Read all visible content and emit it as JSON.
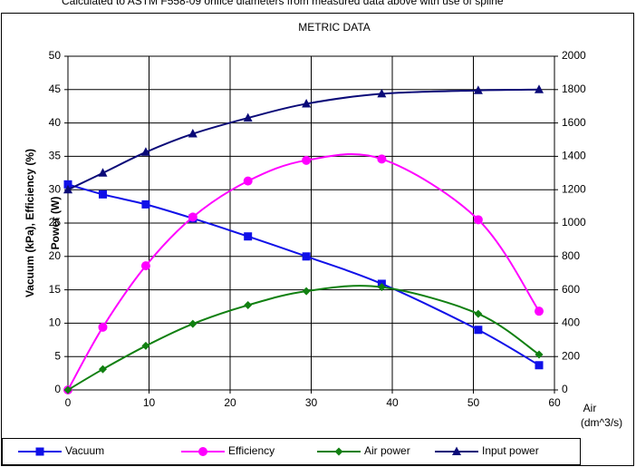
{
  "chart_data": {
    "type": "line",
    "note": "Calculated to ASTM F558-09 orifice diameters from measured data above with use of spline",
    "title": "METRIC DATA",
    "y_label": "Vacuum (kPa), Efficiency (%)",
    "y2_label": "Power (W)",
    "x_label": [
      "Air",
      "(dm^3/s)"
    ],
    "xlim": [
      0,
      60
    ],
    "xticks": [
      0,
      10,
      20,
      30,
      40,
      50,
      60
    ],
    "ylim": [
      0,
      50
    ],
    "yticks": [
      0,
      5,
      10,
      15,
      20,
      25,
      30,
      35,
      40,
      45,
      50
    ],
    "y2lim": [
      0,
      2000
    ],
    "y2ticks": [
      0,
      200,
      400,
      600,
      800,
      1000,
      1200,
      1400,
      1600,
      1800,
      2000
    ],
    "grid": true,
    "legend": "bottom",
    "x": [
      0,
      4.3,
      9.6,
      15.4,
      22.2,
      29.4,
      38.7,
      50.6,
      58.1
    ],
    "series": [
      {
        "name": "Vacuum",
        "color": "#1010e8",
        "marker": "square",
        "values": [
          30.8,
          29.3,
          27.8,
          25.7,
          23.0,
          20.0,
          15.9,
          9.0,
          3.7
        ]
      },
      {
        "name": "Efficiency",
        "color": "#ff00ff",
        "marker": "circle",
        "values": [
          0,
          9.4,
          18.6,
          25.9,
          31.3,
          34.4,
          34.6,
          25.5,
          11.8
        ]
      },
      {
        "name": "Air power",
        "color": "#118011",
        "marker": "diamond",
        "values": [
          0,
          3.1,
          6.6,
          9.9,
          12.7,
          14.8,
          15.4,
          11.4,
          5.3
        ]
      },
      {
        "name": "Input power",
        "color": "#0a0a78",
        "marker": "triangle",
        "axis": "y2",
        "values": [
          1200,
          1300,
          1425,
          1535,
          1630,
          1715,
          1775,
          1795,
          1800
        ]
      }
    ]
  }
}
